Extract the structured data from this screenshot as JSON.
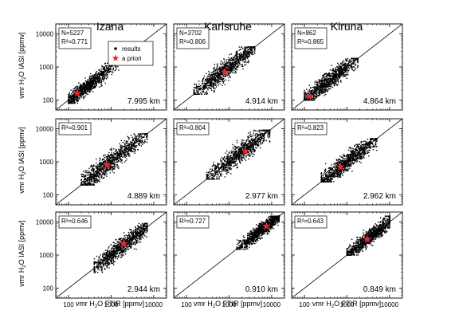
{
  "figure": {
    "station_titles": [
      "Izana",
      "Karlsruhe",
      "Kiruna"
    ],
    "x_axis_label_parts": [
      "vmr H",
      "2",
      "O FTIR [ppmv]"
    ],
    "y_axis_label_parts": [
      "vmr H",
      "2",
      "O IASI [ppmv]"
    ],
    "legend": {
      "results_label": "results",
      "apriori_label": "a priori"
    },
    "colors": {
      "points": "#000000",
      "apriori": "#e8262b",
      "diagonal": "#000000",
      "frame": "#000000"
    }
  },
  "chart_data": [
    {
      "type": "scatter",
      "row": 0,
      "col": 0,
      "station": "Izana",
      "stats": [
        "N=5227",
        "R²=0.771"
      ],
      "altitude": "7.995 km",
      "x_scale": "log",
      "y_scale": "log",
      "xlim": [
        50,
        20000
      ],
      "ylim": [
        50,
        20000
      ],
      "x_ticks": [
        100,
        1000,
        10000
      ],
      "y_ticks": [
        100,
        1000,
        10000
      ],
      "x_ticklabels": [
        "100",
        "1000",
        "10000"
      ],
      "y_ticklabels": [
        "100",
        "1000",
        "10000"
      ],
      "show_x_ticklabels": false,
      "show_y_ticklabels": true,
      "identity_line": true,
      "cloud": {
        "x_range": [
          100,
          1500
        ],
        "y_range": [
          80,
          1500
        ],
        "center": [
          250,
          230
        ]
      },
      "apriori": [
        160,
        160
      ],
      "has_legend": true
    },
    {
      "type": "scatter",
      "row": 0,
      "col": 1,
      "station": "Karlsruhe",
      "stats": [
        "N=3702",
        "R²=0.806"
      ],
      "altitude": "4.914 km",
      "x_scale": "log",
      "y_scale": "log",
      "xlim": [
        50,
        20000
      ],
      "ylim": [
        50,
        20000
      ],
      "x_ticks": [
        100,
        1000,
        10000
      ],
      "y_ticks": [
        100,
        1000,
        10000
      ],
      "x_ticklabels": [
        "100",
        "1000",
        "10000"
      ],
      "y_ticklabels": [
        "100",
        "1000",
        "10000"
      ],
      "show_x_ticklabels": false,
      "show_y_ticklabels": false,
      "identity_line": true,
      "cloud": {
        "x_range": [
          150,
          4000
        ],
        "y_range": [
          150,
          4000
        ],
        "center": [
          900,
          900
        ]
      },
      "apriori": [
        800,
        700
      ],
      "has_legend": false
    },
    {
      "type": "scatter",
      "row": 0,
      "col": 2,
      "station": "Kiruna",
      "stats": [
        "N=862",
        "R²=0.865"
      ],
      "altitude": "4.864 km",
      "x_scale": "log",
      "y_scale": "log",
      "xlim": [
        50,
        20000
      ],
      "ylim": [
        50,
        20000
      ],
      "x_ticks": [
        100,
        1000,
        10000
      ],
      "y_ticks": [
        100,
        1000,
        10000
      ],
      "x_ticklabels": [
        "100",
        "1000",
        "10000"
      ],
      "y_ticklabels": [
        "100",
        "1000",
        "10000"
      ],
      "show_x_ticklabels": false,
      "show_y_ticklabels": false,
      "identity_line": true,
      "cloud": {
        "x_range": [
          100,
          1800
        ],
        "y_range": [
          100,
          1800
        ],
        "center": [
          350,
          350
        ]
      },
      "apriori": [
        130,
        130
      ],
      "has_legend": false
    },
    {
      "type": "scatter",
      "row": 1,
      "col": 0,
      "station": "Izana",
      "stats": [
        "R²=0.901"
      ],
      "altitude": "4.889 km",
      "x_scale": "log",
      "y_scale": "log",
      "xlim": [
        50,
        20000
      ],
      "ylim": [
        50,
        20000
      ],
      "x_ticks": [
        100,
        1000,
        10000
      ],
      "y_ticks": [
        100,
        1000,
        10000
      ],
      "x_ticklabels": [
        "100",
        "1000",
        "10000"
      ],
      "y_ticklabels": [
        "100",
        "1000",
        "10000"
      ],
      "show_x_ticklabels": false,
      "show_y_ticklabels": true,
      "identity_line": true,
      "cloud": {
        "x_range": [
          200,
          7000
        ],
        "y_range": [
          200,
          7000
        ],
        "center": [
          900,
          900
        ]
      },
      "apriori": [
        800,
        800
      ],
      "has_legend": false
    },
    {
      "type": "scatter",
      "row": 1,
      "col": 1,
      "station": "Karlsruhe",
      "stats": [
        "R²=0.804"
      ],
      "altitude": "2.977 km",
      "x_scale": "log",
      "y_scale": "log",
      "xlim": [
        50,
        20000
      ],
      "ylim": [
        50,
        20000
      ],
      "x_ticks": [
        100,
        1000,
        10000
      ],
      "y_ticks": [
        100,
        1000,
        10000
      ],
      "x_ticklabels": [
        "100",
        "1000",
        "10000"
      ],
      "y_ticklabels": [
        "100",
        "1000",
        "10000"
      ],
      "show_x_ticklabels": false,
      "show_y_ticklabels": false,
      "identity_line": true,
      "cloud": {
        "x_range": [
          300,
          9000
        ],
        "y_range": [
          300,
          9000
        ],
        "center": [
          2000,
          2000
        ]
      },
      "apriori": [
        2400,
        2100
      ],
      "has_legend": false
    },
    {
      "type": "scatter",
      "row": 1,
      "col": 2,
      "station": "Kiruna",
      "stats": [
        "R²=0.823"
      ],
      "altitude": "2.962 km",
      "x_scale": "log",
      "y_scale": "log",
      "xlim": [
        50,
        20000
      ],
      "ylim": [
        50,
        20000
      ],
      "x_ticks": [
        100,
        1000,
        10000
      ],
      "y_ticks": [
        100,
        1000,
        10000
      ],
      "x_ticklabels": [
        "100",
        "1000",
        "10000"
      ],
      "y_ticklabels": [
        "100",
        "1000",
        "10000"
      ],
      "show_x_ticklabels": false,
      "show_y_ticklabels": false,
      "identity_line": true,
      "cloud": {
        "x_range": [
          250,
          5000
        ],
        "y_range": [
          250,
          5000
        ],
        "center": [
          900,
          900
        ]
      },
      "apriori": [
        700,
        700
      ],
      "has_legend": false
    },
    {
      "type": "scatter",
      "row": 2,
      "col": 0,
      "station": "Izana",
      "stats": [
        "R²=0.646"
      ],
      "altitude": "2.944 km",
      "x_scale": "log",
      "y_scale": "log",
      "xlim": [
        50,
        20000
      ],
      "ylim": [
        50,
        20000
      ],
      "x_ticks": [
        100,
        1000,
        10000
      ],
      "y_ticks": [
        100,
        1000,
        10000
      ],
      "x_ticklabels": [
        "100",
        "1000",
        "10000"
      ],
      "y_ticklabels": [
        "100",
        "1000",
        "10000"
      ],
      "show_x_ticklabels": true,
      "show_y_ticklabels": true,
      "identity_line": true,
      "cloud": {
        "x_range": [
          400,
          7000
        ],
        "y_range": [
          300,
          9000
        ],
        "center": [
          2000,
          2000
        ]
      },
      "apriori": [
        2000,
        2200
      ],
      "has_legend": false
    },
    {
      "type": "scatter",
      "row": 2,
      "col": 1,
      "station": "Karlsruhe",
      "stats": [
        "R²=0.727"
      ],
      "altitude": "0.910 km",
      "x_scale": "log",
      "y_scale": "log",
      "xlim": [
        50,
        20000
      ],
      "ylim": [
        50,
        20000
      ],
      "x_ticks": [
        100,
        1000,
        10000
      ],
      "y_ticks": [
        100,
        1000,
        10000
      ],
      "x_ticklabels": [
        "100",
        "1000",
        "10000"
      ],
      "y_ticklabels": [
        "100",
        "1000",
        "10000"
      ],
      "show_x_ticklabels": true,
      "show_y_ticklabels": false,
      "identity_line": true,
      "cloud": {
        "x_range": [
          1500,
          15000
        ],
        "y_range": [
          1500,
          15000
        ],
        "center": [
          6500,
          6500
        ]
      },
      "apriori": [
        7500,
        7500
      ],
      "has_legend": false
    },
    {
      "type": "scatter",
      "row": 2,
      "col": 2,
      "station": "Kiruna",
      "stats": [
        "R²=0.643"
      ],
      "altitude": "0.849 km",
      "x_scale": "log",
      "y_scale": "log",
      "xlim": [
        50,
        20000
      ],
      "ylim": [
        50,
        20000
      ],
      "x_ticks": [
        100,
        1000,
        10000
      ],
      "y_ticks": [
        100,
        1000,
        10000
      ],
      "x_ticklabels": [
        "100",
        "1000",
        "10000"
      ],
      "y_ticklabels": [
        "100",
        "1000",
        "10000"
      ],
      "show_x_ticklabels": true,
      "show_y_ticklabels": false,
      "identity_line": true,
      "cloud": {
        "x_range": [
          1000,
          10000
        ],
        "y_range": [
          1000,
          15000
        ],
        "center": [
          3500,
          3500
        ]
      },
      "apriori": [
        3000,
        3000
      ],
      "has_legend": false
    }
  ]
}
